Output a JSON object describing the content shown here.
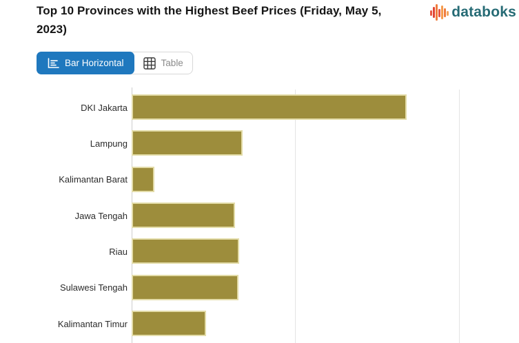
{
  "header": {
    "title": "Top 10 Provinces with the Highest Beef Prices (Friday, May 5, 2023)",
    "logo": {
      "text": "databoks",
      "icon": "equalizer-bars-icon",
      "text_color": "#266B75",
      "icon_colors": [
        "#E04434",
        "#E8563F",
        "#F07C3D",
        "#F59B4C"
      ]
    }
  },
  "view_toggle": {
    "active": "Bar Horizontal",
    "active_bg": "#1F78BE",
    "buttons": [
      {
        "label": "Bar Horizontal",
        "icon": "bar-horizontal-icon",
        "active": true
      },
      {
        "label": "Table",
        "icon": "table-grid-icon",
        "active": false
      }
    ]
  },
  "chart_data": {
    "type": "bar",
    "orientation": "horizontal",
    "title": "Top 10 Provinces with the Highest Beef Prices (Friday, May 5, 2023)",
    "categories": [
      "DKI Jakarta",
      "Lampung",
      "Kalimantan Barat",
      "Jawa Tengah",
      "Riau",
      "Sulawesi Tengah",
      "Kalimantan Timur"
    ],
    "bar_length_pct_of_axis": [
      84,
      33.9,
      6.9,
      31.6,
      32.8,
      32.6,
      22.7
    ],
    "xlabel": "",
    "ylabel": "",
    "grid": "vertical gridlines at 0%, 50% and 100% of axis span; no tick labels visible",
    "legend": "none",
    "visible_rows": 7,
    "total_rows_implied": 10,
    "note": "Axis value labels and the last 3 of the top-10 bars are cut off below the visible screenshot; values are bar lengths as % of plotted axis span",
    "bar_color": "#9D8D3C",
    "bar_border_color": "#E3DCA8",
    "axis_color": "#CCCCCC",
    "gridline_color": "#E4E4E4"
  }
}
